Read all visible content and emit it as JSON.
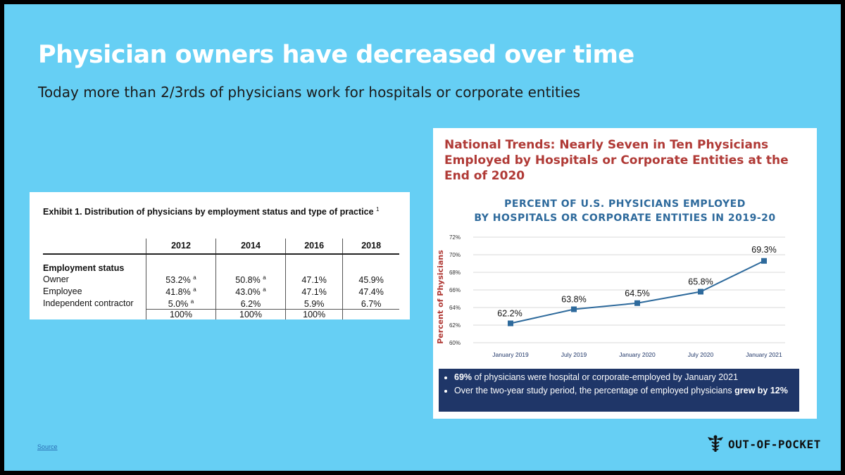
{
  "slide": {
    "title": "Physician owners have decreased over time",
    "subtitle": "Today more than 2/3rds of physicians work for hospitals or corporate entities",
    "source_label": "Source",
    "logo_text": "OUT-OF-POCKET"
  },
  "exhibit": {
    "title": "Exhibit 1. Distribution of physicians by employment status and type of practice",
    "title_sup": "1",
    "years": [
      "2012",
      "2014",
      "2016",
      "2018"
    ],
    "section_label": "Employment status",
    "rows": [
      {
        "label": "Owner",
        "cells": [
          {
            "v": "53.2%",
            "sup": "a"
          },
          {
            "v": "50.8%",
            "sup": "a"
          },
          {
            "v": "47.1%",
            "sup": ""
          },
          {
            "v": "45.9%",
            "sup": ""
          }
        ]
      },
      {
        "label": "Employee",
        "cells": [
          {
            "v": "41.8%",
            "sup": "a"
          },
          {
            "v": "43.0%",
            "sup": "a"
          },
          {
            "v": "47.1%",
            "sup": ""
          },
          {
            "v": "47.4%",
            "sup": ""
          }
        ]
      },
      {
        "label": "Independent contractor",
        "cells": [
          {
            "v": "5.0%",
            "sup": "a"
          },
          {
            "v": "6.2%",
            "sup": ""
          },
          {
            "v": "5.9%",
            "sup": ""
          },
          {
            "v": "6.7%",
            "sup": ""
          }
        ]
      }
    ],
    "totals": [
      "100%",
      "100%",
      "100%",
      ""
    ]
  },
  "panel": {
    "heading": "National Trends: Nearly Seven in Ten Physicians Employed by Hospitals or Corporate Entities at the End of 2020",
    "chart_title_line1": "PERCENT OF U.S. PHYSICIANS EMPLOYED",
    "chart_title_line2": "BY HOSPITALS OR CORPORATE ENTITIES IN 2019-20",
    "bullet1_bold": "69%",
    "bullet1_rest": " of physicians were hospital or corporate-employed by January 2021",
    "bullet2_rest": "Over the two-year study period, the percentage of employed physicians ",
    "bullet2_bold": "grew by 12%"
  },
  "colors": {
    "background": "#66cff4",
    "heading_red": "#b03a36",
    "line_blue": "#2e6a9c",
    "marker_blue": "#2e6a9c",
    "navy": "#1f3668"
  },
  "chart_data": {
    "type": "line",
    "title": "PERCENT OF U.S. PHYSICIANS EMPLOYED BY HOSPITALS OR CORPORATE ENTITIES IN 2019-20",
    "xlabel": "",
    "ylabel": "Percent of Physicians",
    "categories": [
      "January 2019",
      "July 2019",
      "January 2020",
      "July 2020",
      "January 2021"
    ],
    "values": [
      62.2,
      63.8,
      64.5,
      65.8,
      69.3
    ],
    "data_labels": [
      "62.2%",
      "63.8%",
      "64.5%",
      "65.8%",
      "69.3%"
    ],
    "ylim": [
      60,
      72
    ],
    "yticks": [
      60,
      62,
      64,
      66,
      68,
      70,
      72
    ],
    "ytick_labels": [
      "60%",
      "62%",
      "64%",
      "66%",
      "68%",
      "70%",
      "72%"
    ],
    "grid": true,
    "legend": "none"
  }
}
